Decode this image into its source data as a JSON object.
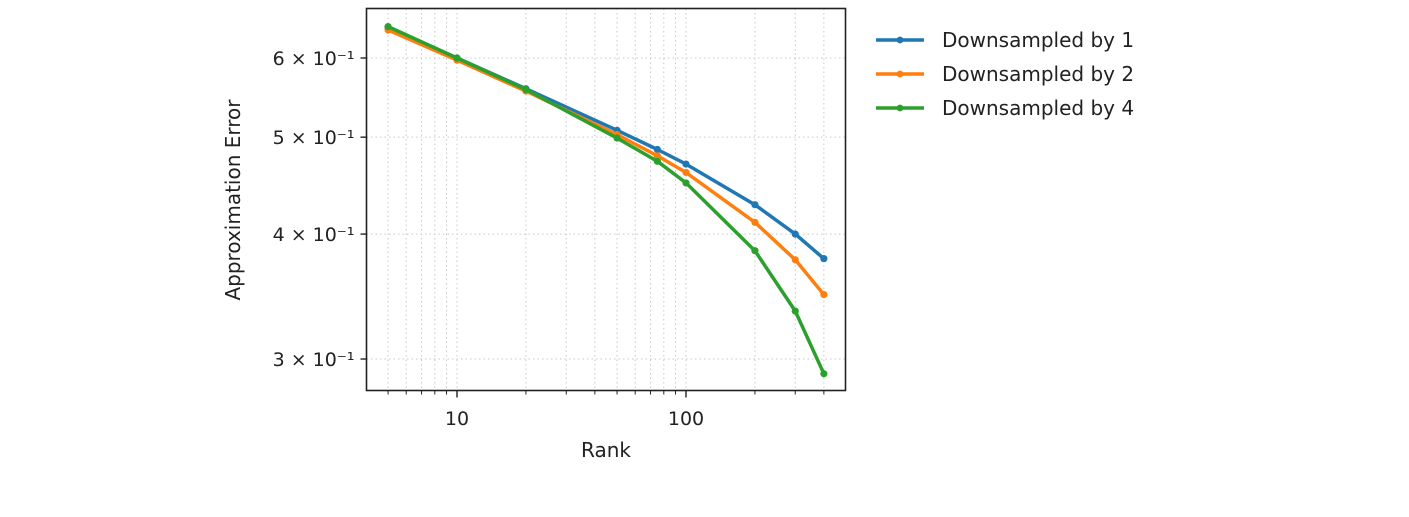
{
  "chart_data": {
    "type": "line",
    "title": "",
    "xlabel": "Rank",
    "ylabel": "Approximation Error",
    "xscale": "log",
    "yscale": "log",
    "xlim": [
      4.4,
      450
    ],
    "ylim": [
      0.281,
      0.66
    ],
    "grid": true,
    "grid_style": "dotted, major and minor",
    "legend_position": "outside upper right",
    "x_ticks": [
      10,
      100
    ],
    "x_tick_labels": [
      "10",
      "100"
    ],
    "y_ticks": [
      0.3,
      0.4,
      0.5,
      0.6
    ],
    "y_tick_labels": [
      "3 × 10⁻¹",
      "4 × 10⁻¹",
      "5 × 10⁻¹",
      "6 × 10⁻¹"
    ],
    "x": [
      5,
      10,
      20,
      50,
      75,
      100,
      200,
      300,
      400
    ],
    "series": [
      {
        "name": "Downsampled by 1",
        "color": "#1f77b4",
        "values": [
          0.644,
          0.6,
          0.559,
          0.508,
          0.486,
          0.47,
          0.428,
          0.4,
          0.378
        ]
      },
      {
        "name": "Downsampled by 2",
        "color": "#ff7f0e",
        "values": [
          0.64,
          0.597,
          0.556,
          0.503,
          0.479,
          0.461,
          0.411,
          0.377,
          0.348
        ]
      },
      {
        "name": "Downsampled by 4",
        "color": "#2ca02c",
        "values": [
          0.645,
          0.6,
          0.558,
          0.499,
          0.473,
          0.45,
          0.385,
          0.335,
          0.29
        ]
      }
    ]
  }
}
